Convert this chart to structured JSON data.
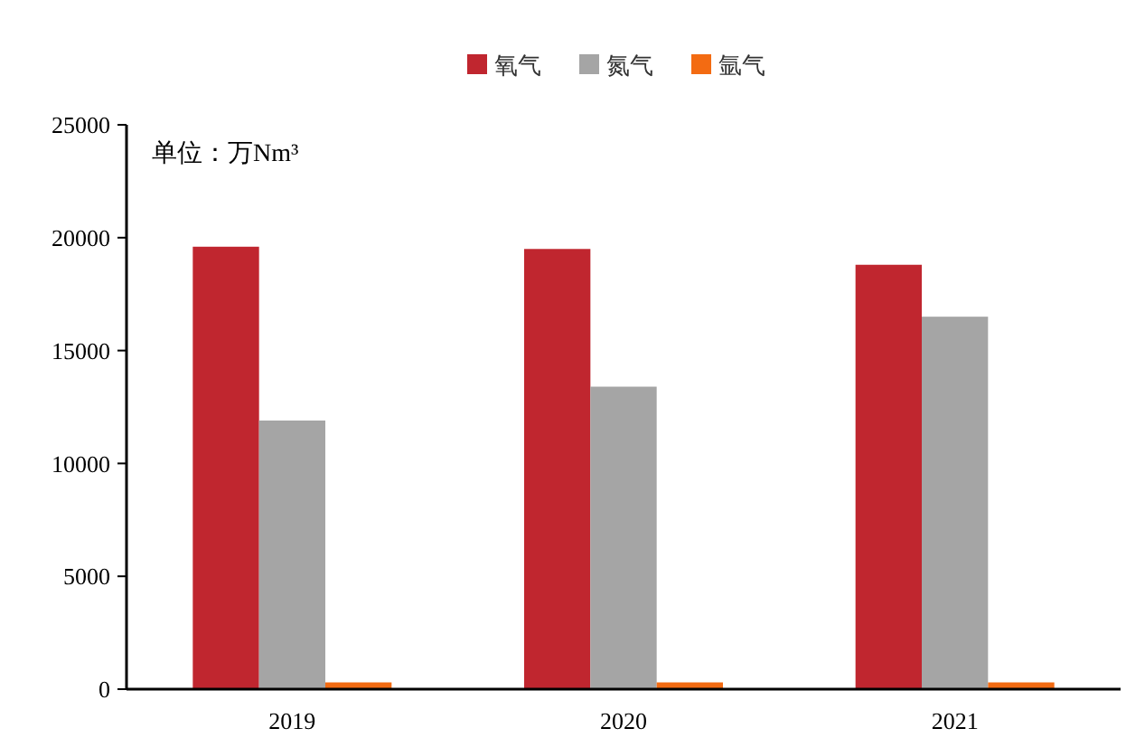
{
  "chart_data": {
    "type": "bar",
    "categories": [
      "2019",
      "2020",
      "2021"
    ],
    "series": [
      {
        "name": "氧气",
        "color": "#c0262f",
        "values": [
          19600,
          19500,
          18800
        ]
      },
      {
        "name": "氮气",
        "color": "#a5a5a5",
        "values": [
          11900,
          13400,
          16500
        ]
      },
      {
        "name": "氩气",
        "color": "#f36b12",
        "values": [
          300,
          300,
          300
        ]
      }
    ],
    "ylim": [
      0,
      25000
    ],
    "yticks": [
      0,
      5000,
      10000,
      15000,
      20000,
      25000
    ],
    "grid": false,
    "legend": "top",
    "annotations": [
      "单位：万Nm³"
    ]
  }
}
